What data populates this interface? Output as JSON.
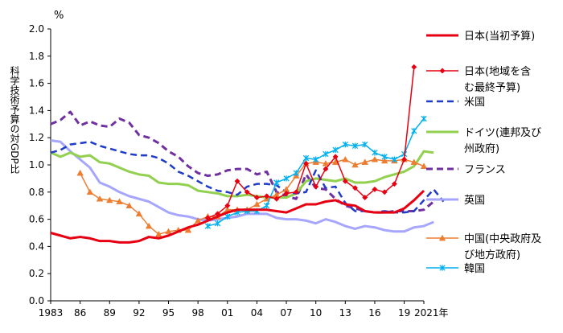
{
  "chart_data": {
    "type": "line",
    "unit_label": "%",
    "ylabel": "科学技術予算の対GDP比",
    "ylim": [
      0.0,
      2.0
    ],
    "yticks": [
      "0.0",
      "0.2",
      "0.4",
      "0.6",
      "0.8",
      "1.0",
      "1.2",
      "1.4",
      "1.6",
      "1.8",
      "2.0"
    ],
    "xlim": [
      1983,
      2021
    ],
    "xticks": [
      {
        "year": 1983,
        "label": "1983"
      },
      {
        "year": 1986,
        "label": "86"
      },
      {
        "year": 1989,
        "label": "89"
      },
      {
        "year": 1992,
        "label": "92"
      },
      {
        "year": 1995,
        "label": "95"
      },
      {
        "year": 1998,
        "label": "98"
      },
      {
        "year": 2001,
        "label": "01"
      },
      {
        "year": 2004,
        "label": "04"
      },
      {
        "year": 2007,
        "label": "07"
      },
      {
        "year": 2010,
        "label": "10"
      },
      {
        "year": 2013,
        "label": "13"
      },
      {
        "year": 2016,
        "label": "16"
      },
      {
        "year": 2019,
        "label": "19"
      },
      {
        "year": 2021,
        "label": "2021年"
      }
    ],
    "series": [
      {
        "key": "japan",
        "name": "日本(当初予算)",
        "legend_lines": [
          "日本(当初予算)"
        ],
        "color": "#e60012",
        "dash": "",
        "width": 3,
        "marker": "none",
        "start": 1983,
        "values": [
          0.5,
          0.48,
          0.46,
          0.47,
          0.46,
          0.44,
          0.44,
          0.43,
          0.43,
          0.44,
          0.47,
          0.46,
          0.48,
          0.51,
          0.54,
          0.56,
          0.59,
          0.62,
          0.65,
          0.67,
          0.67,
          0.67,
          0.67,
          0.66,
          0.65,
          0.68,
          0.71,
          0.71,
          0.73,
          0.74,
          0.71,
          0.7,
          0.66,
          0.65,
          0.65,
          0.65,
          0.68,
          0.74,
          0.81
        ]
      },
      {
        "key": "japan_local",
        "name": "日本(地域を含む最終予算)",
        "legend_lines": [
          "日本(地域を含",
          "む最終予算)"
        ],
        "color": "#e60012",
        "dash": "",
        "width": 1.5,
        "marker": "diamond",
        "start": 1999,
        "values": [
          0.61,
          0.64,
          0.7,
          0.88,
          0.8,
          0.76,
          0.77,
          0.75,
          0.79,
          0.8,
          1.01,
          0.84,
          0.97,
          1.06,
          0.88,
          0.83,
          0.76,
          0.82,
          0.8,
          0.86,
          1.04,
          1.72
        ]
      },
      {
        "key": "usa",
        "name": "米国",
        "legend_lines": [
          "米国"
        ],
        "color": "#1f3cc8",
        "dash": "8,5",
        "width": 2.5,
        "marker": "none",
        "start": 1983,
        "values": [
          1.09,
          1.11,
          1.15,
          1.16,
          1.17,
          1.14,
          1.12,
          1.1,
          1.08,
          1.07,
          1.07,
          1.05,
          1.01,
          0.95,
          0.92,
          0.88,
          0.84,
          0.81,
          0.8,
          0.78,
          0.84,
          0.86,
          0.86,
          0.85,
          0.8,
          0.79,
          0.8,
          0.96,
          0.83,
          0.84,
          0.72,
          0.66,
          0.66,
          0.65,
          0.66,
          0.65,
          0.65,
          0.66,
          0.74,
          0.82,
          0.73
        ]
      },
      {
        "key": "germany",
        "name": "ドイツ(連邦及び州政府)",
        "legend_lines": [
          "ドイツ(連邦及び",
          "州政府)"
        ],
        "color": "#92d050",
        "dash": "",
        "width": 3,
        "marker": "none",
        "start": 1983,
        "values": [
          1.09,
          1.06,
          1.09,
          1.06,
          1.07,
          1.02,
          1.01,
          0.98,
          0.95,
          0.93,
          0.92,
          0.87,
          0.86,
          0.86,
          0.85,
          0.81,
          0.8,
          0.79,
          0.77,
          0.77,
          0.78,
          0.77,
          0.76,
          0.76,
          0.76,
          0.79,
          0.88,
          0.9,
          0.89,
          0.88,
          0.9,
          0.87,
          0.87,
          0.88,
          0.91,
          0.93,
          0.95,
          0.99,
          1.1,
          1.09
        ]
      },
      {
        "key": "france",
        "name": "フランス",
        "legend_lines": [
          "フランス"
        ],
        "color": "#7030a0",
        "dash": "8,5",
        "width": 3,
        "marker": "none",
        "start": 1983,
        "values": [
          1.3,
          1.33,
          1.39,
          1.29,
          1.32,
          1.29,
          1.28,
          1.34,
          1.31,
          1.22,
          1.2,
          1.16,
          1.1,
          1.06,
          0.99,
          0.94,
          0.92,
          0.93,
          0.96,
          0.97,
          0.97,
          0.93,
          0.95,
          0.8,
          0.77,
          0.75,
          0.93,
          0.83,
          0.82,
          0.75,
          0.7,
          0.68,
          0.66,
          0.65,
          0.65,
          0.66,
          0.66,
          0.66,
          0.67,
          0.73
        ]
      },
      {
        "key": "uk",
        "name": "英国",
        "legend_lines": [
          "英国"
        ],
        "color": "#a6a6ff",
        "dash": "",
        "width": 3,
        "marker": "none",
        "start": 1983,
        "values": [
          1.18,
          1.17,
          1.1,
          1.04,
          0.98,
          0.87,
          0.84,
          0.8,
          0.77,
          0.75,
          0.73,
          0.69,
          0.65,
          0.63,
          0.62,
          0.6,
          0.59,
          0.6,
          0.61,
          0.62,
          0.64,
          0.64,
          0.64,
          0.61,
          0.6,
          0.6,
          0.59,
          0.57,
          0.6,
          0.58,
          0.55,
          0.53,
          0.55,
          0.54,
          0.52,
          0.51,
          0.51,
          0.54,
          0.55,
          0.58
        ]
      },
      {
        "key": "china",
        "name": "中国(中央政府及び地方政府)",
        "legend_lines": [
          "中国(中央政府及",
          "び地方政府)"
        ],
        "color": "#ed7d31",
        "dash": "",
        "width": 1.5,
        "marker": "triangle",
        "start": 1986,
        "values": [
          0.94,
          0.8,
          0.75,
          0.74,
          0.73,
          0.7,
          0.64,
          0.55,
          0.49,
          0.51,
          0.52,
          0.52,
          0.59,
          0.62,
          0.62,
          0.67,
          0.67,
          0.67,
          0.71,
          0.75,
          0.78,
          0.82,
          0.92,
          1.01,
          1.02,
          1.01,
          1.02,
          1.04,
          1.0,
          1.02,
          1.04,
          1.03,
          1.03,
          1.04,
          1.02,
          0.99
        ]
      },
      {
        "key": "korea",
        "name": "韓国",
        "legend_lines": [
          "韓国"
        ],
        "color": "#00b0f0",
        "dash": "",
        "width": 1.5,
        "marker": "star",
        "start": 1999,
        "values": [
          0.55,
          0.57,
          0.62,
          0.65,
          0.66,
          0.66,
          0.7,
          0.87,
          0.9,
          0.94,
          1.05,
          1.04,
          1.08,
          1.11,
          1.15,
          1.14,
          1.15,
          1.09,
          1.06,
          1.04,
          1.08,
          1.25,
          1.34
        ]
      }
    ]
  }
}
